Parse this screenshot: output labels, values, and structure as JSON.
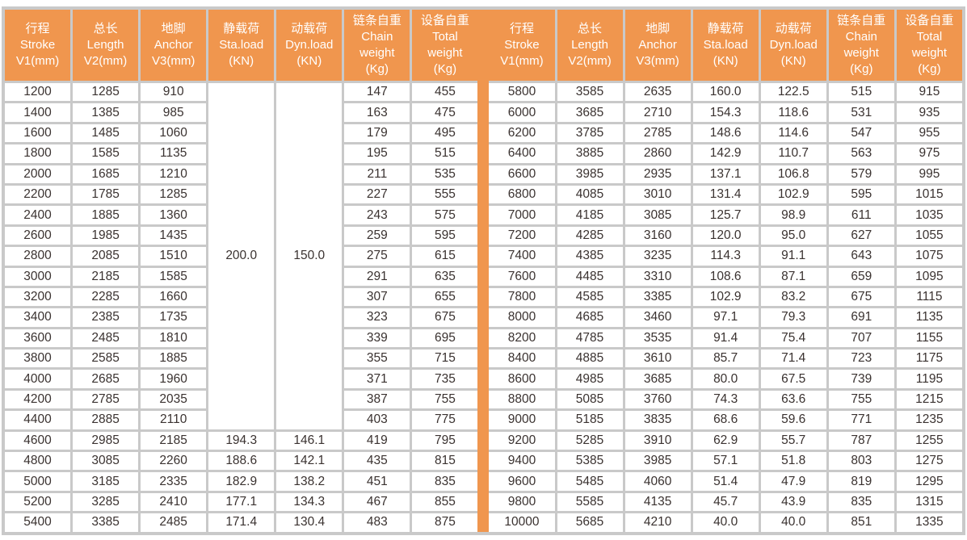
{
  "colors": {
    "header_bg": "#F0964E",
    "grid": "#C9C9C9",
    "cell_bg": "#FFFFFF",
    "header_text": "#FFFFFF",
    "body_text": "#3A3230",
    "divider": "#F0964E"
  },
  "table": {
    "columns": [
      {
        "label": "行程\nStroke\nV1(mm)"
      },
      {
        "label": "总长\nLength\nV2(mm)"
      },
      {
        "label": "地脚\nAnchor\nV3(mm)"
      },
      {
        "label": "静载荷\nSta.load\n(KN)"
      },
      {
        "label": "动载荷\nDyn.load\n(KN)"
      },
      {
        "label": "链条自重\nChain\nweight\n(Kg)"
      },
      {
        "label": "设备自重\nTotal\nweight\n(Kg)"
      }
    ],
    "merged": [
      {
        "side": "left",
        "row": 0,
        "col": 3,
        "rowspan": 17,
        "value": "200.0"
      },
      {
        "side": "left",
        "row": 0,
        "col": 4,
        "rowspan": 17,
        "value": "150.0"
      }
    ],
    "left_rows": [
      [
        "1200",
        "1285",
        "910",
        null,
        null,
        "147",
        "455"
      ],
      [
        "1400",
        "1385",
        "985",
        null,
        null,
        "163",
        "475"
      ],
      [
        "1600",
        "1485",
        "1060",
        null,
        null,
        "179",
        "495"
      ],
      [
        "1800",
        "1585",
        "1135",
        null,
        null,
        "195",
        "515"
      ],
      [
        "2000",
        "1685",
        "1210",
        null,
        null,
        "211",
        "535"
      ],
      [
        "2200",
        "1785",
        "1285",
        null,
        null,
        "227",
        "555"
      ],
      [
        "2400",
        "1885",
        "1360",
        null,
        null,
        "243",
        "575"
      ],
      [
        "2600",
        "1985",
        "1435",
        null,
        null,
        "259",
        "595"
      ],
      [
        "2800",
        "2085",
        "1510",
        null,
        null,
        "275",
        "615"
      ],
      [
        "3000",
        "2185",
        "1585",
        null,
        null,
        "291",
        "635"
      ],
      [
        "3200",
        "2285",
        "1660",
        null,
        null,
        "307",
        "655"
      ],
      [
        "3400",
        "2385",
        "1735",
        null,
        null,
        "323",
        "675"
      ],
      [
        "3600",
        "2485",
        "1810",
        null,
        null,
        "339",
        "695"
      ],
      [
        "3800",
        "2585",
        "1885",
        null,
        null,
        "355",
        "715"
      ],
      [
        "4000",
        "2685",
        "1960",
        null,
        null,
        "371",
        "735"
      ],
      [
        "4200",
        "2785",
        "2035",
        null,
        null,
        "387",
        "755"
      ],
      [
        "4400",
        "2885",
        "2110",
        null,
        null,
        "403",
        "775"
      ],
      [
        "4600",
        "2985",
        "2185",
        "194.3",
        "146.1",
        "419",
        "795"
      ],
      [
        "4800",
        "3085",
        "2260",
        "188.6",
        "142.1",
        "435",
        "815"
      ],
      [
        "5000",
        "3185",
        "2335",
        "182.9",
        "138.2",
        "451",
        "835"
      ],
      [
        "5200",
        "3285",
        "2410",
        "177.1",
        "134.3",
        "467",
        "855"
      ],
      [
        "5400",
        "3385",
        "2485",
        "171.4",
        "130.4",
        "483",
        "875"
      ]
    ],
    "right_rows": [
      [
        "5800",
        "3585",
        "2635",
        "160.0",
        "122.5",
        "515",
        "915"
      ],
      [
        "6000",
        "3685",
        "2710",
        "154.3",
        "118.6",
        "531",
        "935"
      ],
      [
        "6200",
        "3785",
        "2785",
        "148.6",
        "114.6",
        "547",
        "955"
      ],
      [
        "6400",
        "3885",
        "2860",
        "142.9",
        "110.7",
        "563",
        "975"
      ],
      [
        "6600",
        "3985",
        "2935",
        "137.1",
        "106.8",
        "579",
        "995"
      ],
      [
        "6800",
        "4085",
        "3010",
        "131.4",
        "102.9",
        "595",
        "1015"
      ],
      [
        "7000",
        "4185",
        "3085",
        "125.7",
        "98.9",
        "611",
        "1035"
      ],
      [
        "7200",
        "4285",
        "3160",
        "120.0",
        "95.0",
        "627",
        "1055"
      ],
      [
        "7400",
        "4385",
        "3235",
        "114.3",
        "91.1",
        "643",
        "1075"
      ],
      [
        "7600",
        "4485",
        "3310",
        "108.6",
        "87.1",
        "659",
        "1095"
      ],
      [
        "7800",
        "4585",
        "3385",
        "102.9",
        "83.2",
        "675",
        "1115"
      ],
      [
        "8000",
        "4685",
        "3460",
        "97.1",
        "79.3",
        "691",
        "1135"
      ],
      [
        "8200",
        "4785",
        "3535",
        "91.4",
        "75.4",
        "707",
        "1155"
      ],
      [
        "8400",
        "4885",
        "3610",
        "85.7",
        "71.4",
        "723",
        "1175"
      ],
      [
        "8600",
        "4985",
        "3685",
        "80.0",
        "67.5",
        "739",
        "1195"
      ],
      [
        "8800",
        "5085",
        "3760",
        "74.3",
        "63.6",
        "755",
        "1215"
      ],
      [
        "9000",
        "5185",
        "3835",
        "68.6",
        "59.6",
        "771",
        "1235"
      ],
      [
        "9200",
        "5285",
        "3910",
        "62.9",
        "55.7",
        "787",
        "1255"
      ],
      [
        "9400",
        "5385",
        "3985",
        "57.1",
        "51.8",
        "803",
        "1275"
      ],
      [
        "9600",
        "5485",
        "4060",
        "51.4",
        "47.9",
        "819",
        "1295"
      ],
      [
        "9800",
        "5585",
        "4135",
        "45.7",
        "43.9",
        "835",
        "1315"
      ],
      [
        "10000",
        "5685",
        "4210",
        "40.0",
        "40.0",
        "851",
        "1335"
      ]
    ]
  }
}
